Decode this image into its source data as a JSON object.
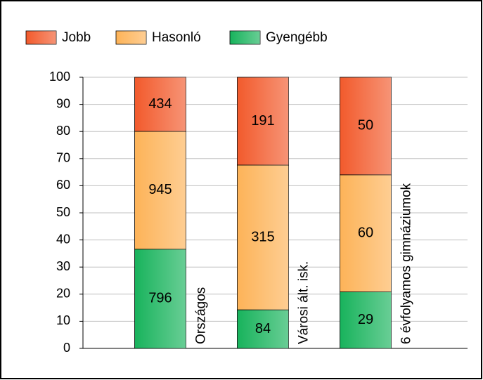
{
  "chart_data": {
    "type": "bar",
    "stacking": "percent",
    "categories": [
      "Országos",
      "Városi ált. isk.",
      "6 évfolyamos gimnáziumok"
    ],
    "series": [
      {
        "name": "Gyengébb",
        "color": "#18b35c",
        "values": [
          796,
          84,
          29
        ]
      },
      {
        "name": "Hasonló",
        "color": "#fdb358",
        "values": [
          945,
          315,
          60
        ]
      },
      {
        "name": "Jobb",
        "color": "#f25a2c",
        "values": [
          434,
          191,
          50
        ]
      }
    ],
    "legend_order": [
      2,
      1,
      0
    ],
    "ylim": [
      0,
      100
    ],
    "yticks": [
      0,
      10,
      20,
      30,
      40,
      50,
      60,
      70,
      80,
      90,
      100
    ],
    "grid": true
  }
}
